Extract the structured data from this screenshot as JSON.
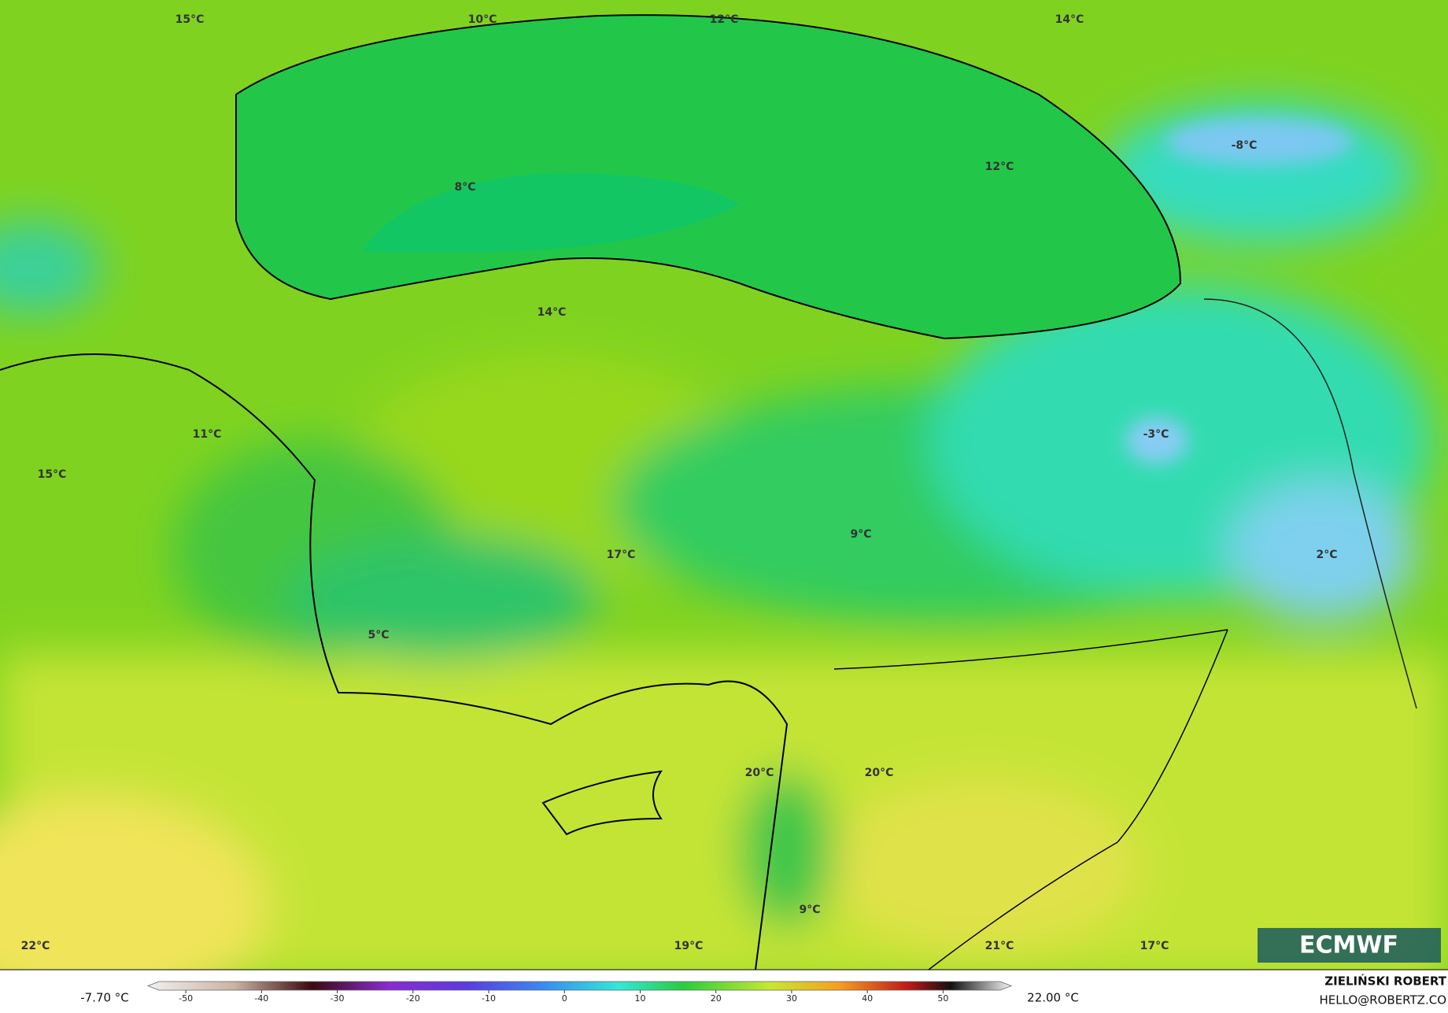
{
  "labels": [
    "15°C",
    "10°C",
    "12°C",
    "14°C",
    "-8°C",
    "12°C",
    "8°C",
    "14°C",
    "11°C",
    "-3°C",
    "15°C",
    "9°C",
    "17°C",
    "2°C",
    "5°C",
    "20°C",
    "20°C",
    "9°C",
    "22°C",
    "19°C",
    "21°C",
    "17°C"
  ],
  "logo": "ECMWF",
  "colorbar": {
    "lim": [
      -55,
      59
    ],
    "ticks": [
      -50,
      -40,
      -30,
      -20,
      -10,
      0,
      10,
      20,
      30,
      40,
      50
    ],
    "min_label": "-7.70 °C",
    "max_label": "22.00 °C"
  },
  "credit": {
    "name": "ZIELIŃSKI ROBERT",
    "contact": "HELLO@ROBERTZ.CO"
  }
}
